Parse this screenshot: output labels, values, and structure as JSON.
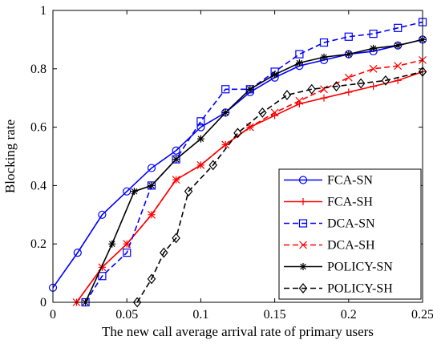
{
  "chart_data": {
    "type": "line",
    "xlabel": "The new call average arrival rate of primary users",
    "ylabel": "Blocking rate",
    "xlim": [
      0,
      0.25
    ],
    "ylim": [
      0,
      1
    ],
    "xticks": [
      0,
      0.05,
      0.1,
      0.15,
      0.2,
      0.25
    ],
    "xtick_labels": [
      "0",
      "0.05",
      "0.1",
      "0.15",
      "0.2",
      "0.25"
    ],
    "yticks": [
      0,
      0.2,
      0.4,
      0.6,
      0.8,
      1
    ],
    "ytick_labels": [
      "0",
      "0.2",
      "0.4",
      "0.6",
      "0.8",
      "1"
    ],
    "grid": false,
    "legend_position": "bottom-right",
    "series": [
      {
        "name": "FCA-SN",
        "color": "#0000ff",
        "dash": "solid",
        "marker": "circle",
        "x": [
          0,
          0.0167,
          0.0333,
          0.05,
          0.0667,
          0.0833,
          0.1,
          0.1167,
          0.1333,
          0.15,
          0.1667,
          0.1833,
          0.2,
          0.2167,
          0.2333,
          0.25
        ],
        "y": [
          0.05,
          0.17,
          0.3,
          0.38,
          0.46,
          0.52,
          0.6,
          0.65,
          0.72,
          0.77,
          0.81,
          0.83,
          0.85,
          0.86,
          0.88,
          0.9
        ]
      },
      {
        "name": "FCA-SH",
        "color": "#ff0000",
        "dash": "solid",
        "marker": "plus",
        "x": [
          0.016,
          0.0333,
          0.05,
          0.0667,
          0.0833,
          0.1,
          0.1167,
          0.1333,
          0.15,
          0.1667,
          0.1833,
          0.2,
          0.2167,
          0.2333,
          0.25
        ],
        "y": [
          0.0,
          0.12,
          0.2,
          0.3,
          0.42,
          0.47,
          0.54,
          0.6,
          0.64,
          0.68,
          0.7,
          0.72,
          0.74,
          0.76,
          0.79
        ]
      },
      {
        "name": "DCA-SN",
        "color": "#0000ff",
        "dash": "dashed",
        "marker": "square",
        "x": [
          0.022,
          0.0333,
          0.05,
          0.0667,
          0.0833,
          0.1,
          0.1167,
          0.1333,
          0.15,
          0.1667,
          0.1833,
          0.2,
          0.2167,
          0.2333,
          0.25
        ],
        "y": [
          0.0,
          0.09,
          0.17,
          0.4,
          0.49,
          0.62,
          0.73,
          0.73,
          0.79,
          0.85,
          0.89,
          0.91,
          0.92,
          0.94,
          0.96
        ]
      },
      {
        "name": "DCA-SH",
        "color": "#ff0000",
        "dash": "dashed",
        "marker": "x",
        "x": [
          0.016,
          0.0333,
          0.05,
          0.0667,
          0.0833,
          0.1,
          0.1167,
          0.1333,
          0.15,
          0.1667,
          0.1833,
          0.2,
          0.2167,
          0.2333,
          0.25
        ],
        "y": [
          0.0,
          0.12,
          0.2,
          0.3,
          0.42,
          0.47,
          0.54,
          0.6,
          0.65,
          0.69,
          0.73,
          0.77,
          0.8,
          0.81,
          0.83
        ]
      },
      {
        "name": "POLICY-SN",
        "color": "#000000",
        "dash": "solid",
        "marker": "star",
        "x": [
          0.022,
          0.04,
          0.055,
          0.0667,
          0.0833,
          0.1,
          0.1167,
          0.1333,
          0.15,
          0.1667,
          0.1833,
          0.2,
          0.2167,
          0.2333,
          0.25
        ],
        "y": [
          0.0,
          0.2,
          0.38,
          0.4,
          0.49,
          0.56,
          0.65,
          0.73,
          0.78,
          0.82,
          0.84,
          0.85,
          0.87,
          0.88,
          0.9
        ]
      },
      {
        "name": "POLICY-SH",
        "color": "#000000",
        "dash": "dashed",
        "marker": "diamond",
        "x": [
          0.057,
          0.0667,
          0.075,
          0.0833,
          0.0917,
          0.1083,
          0.125,
          0.1417,
          0.1583,
          0.175,
          0.1917,
          0.2083,
          0.225,
          0.25
        ],
        "y": [
          0.0,
          0.08,
          0.17,
          0.22,
          0.38,
          0.47,
          0.58,
          0.65,
          0.71,
          0.73,
          0.74,
          0.75,
          0.76,
          0.79
        ]
      }
    ]
  }
}
